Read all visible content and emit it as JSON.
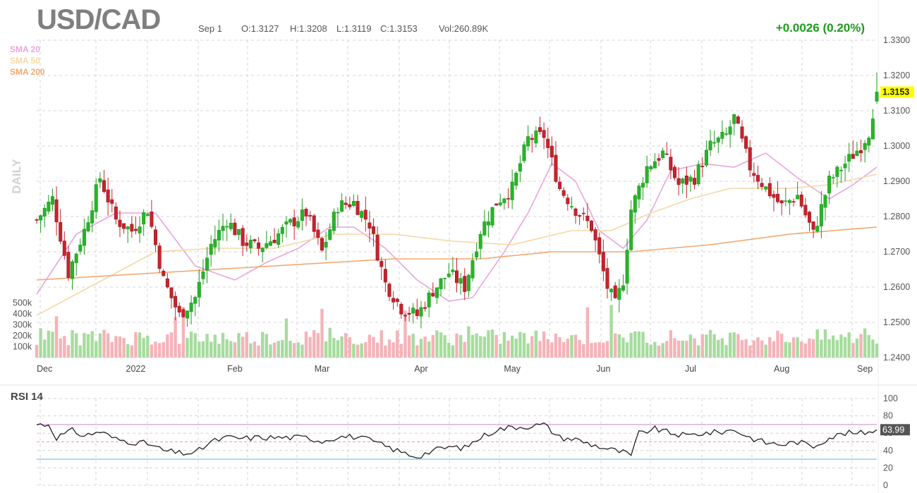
{
  "header": {
    "symbol": "USD/CAD",
    "date": "Sep 1",
    "open": "O:1.3127",
    "high": "H:1.3208",
    "low": "L:1.3119",
    "close": "C:1.3153",
    "volume": "Vol:260.89K",
    "change": "+0.0026 (0.20%)"
  },
  "legend": {
    "sma20": "SMA 20",
    "sma50": "SMA 50",
    "sma200": "SMA 200",
    "daily": "DAILY"
  },
  "colors": {
    "up": "#1e9c1e",
    "up_fill": "#27b427",
    "down": "#c8232c",
    "vol_up": "#a6dc9e",
    "vol_down": "#f5b3b8",
    "sma20": "#e9a6dc",
    "sma50": "#f4d9a5",
    "sma200": "#f2a86f",
    "price_highlight": "#ffff00",
    "rsi_line": "#222222",
    "rsi_upper": "#d9a6d9",
    "rsi_lower": "#8ec8e8"
  },
  "chart_data": [
    {
      "type": "candlestick",
      "title": "USD/CAD",
      "interval": "daily",
      "ylim": [
        1.24,
        1.33
      ],
      "y_ticks": [
        "1.3300",
        "1.3200",
        "1.3100",
        "1.3000",
        "1.2900",
        "1.2800",
        "1.2700",
        "1.2600",
        "1.2500",
        "1.2400"
      ],
      "x_ticks": [
        "Dec",
        "2022",
        "Feb",
        "Mar",
        "Apr",
        "May",
        "Jun",
        "Jul",
        "Aug",
        "Sep"
      ],
      "x_ticks_at_bar": [
        2,
        25,
        50,
        72,
        97,
        120,
        143,
        165,
        188,
        209
      ],
      "last_price": "1.3153",
      "grid": true,
      "keyframes": [
        [
          0,
          1.279
        ],
        [
          4,
          1.285
        ],
        [
          8,
          1.264
        ],
        [
          12,
          1.276
        ],
        [
          16,
          1.291
        ],
        [
          20,
          1.279
        ],
        [
          24,
          1.276
        ],
        [
          28,
          1.282
        ],
        [
          32,
          1.262
        ],
        [
          36,
          1.252
        ],
        [
          40,
          1.257
        ],
        [
          44,
          1.272
        ],
        [
          48,
          1.279
        ],
        [
          52,
          1.273
        ],
        [
          56,
          1.271
        ],
        [
          60,
          1.274
        ],
        [
          64,
          1.278
        ],
        [
          68,
          1.281
        ],
        [
          72,
          1.27
        ],
        [
          76,
          1.283
        ],
        [
          80,
          1.284
        ],
        [
          84,
          1.278
        ],
        [
          88,
          1.261
        ],
        [
          92,
          1.254
        ],
        [
          96,
          1.252
        ],
        [
          100,
          1.259
        ],
        [
          104,
          1.264
        ],
        [
          108,
          1.26
        ],
        [
          112,
          1.276
        ],
        [
          116,
          1.284
        ],
        [
          120,
          1.288
        ],
        [
          124,
          1.302
        ],
        [
          128,
          1.303
        ],
        [
          132,
          1.288
        ],
        [
          136,
          1.282
        ],
        [
          140,
          1.277
        ],
        [
          144,
          1.26
        ],
        [
          146,
          1.255
        ],
        [
          148,
          1.262
        ],
        [
          150,
          1.282
        ],
        [
          154,
          1.294
        ],
        [
          158,
          1.298
        ],
        [
          162,
          1.289
        ],
        [
          166,
          1.291
        ],
        [
          170,
          1.3
        ],
        [
          174,
          1.303
        ],
        [
          176,
          1.308
        ],
        [
          180,
          1.294
        ],
        [
          184,
          1.288
        ],
        [
          188,
          1.283
        ],
        [
          192,
          1.286
        ],
        [
          196,
          1.275
        ],
        [
          200,
          1.29
        ],
        [
          204,
          1.295
        ],
        [
          208,
          1.3
        ],
        [
          210,
          1.304
        ],
        [
          212,
          1.3153
        ]
      ],
      "volume_scale": [
        "500k",
        "400k",
        "300k",
        "200k",
        "100k"
      ],
      "volume_ylim": [
        0,
        600000
      ],
      "volume_level": 200000,
      "sma_series": [
        {
          "name": "SMA 20",
          "points": [
            [
              0,
              1.258
            ],
            [
              10,
              1.275
            ],
            [
              20,
              1.281
            ],
            [
              30,
              1.281
            ],
            [
              40,
              1.266
            ],
            [
              50,
              1.262
            ],
            [
              58,
              1.267
            ],
            [
              66,
              1.271
            ],
            [
              74,
              1.277
            ],
            [
              80,
              1.277
            ],
            [
              88,
              1.271
            ],
            [
              96,
              1.262
            ],
            [
              104,
              1.256
            ],
            [
              110,
              1.257
            ],
            [
              118,
              1.27
            ],
            [
              124,
              1.281
            ],
            [
              130,
              1.295
            ],
            [
              136,
              1.29
            ],
            [
              142,
              1.276
            ],
            [
              148,
              1.271
            ],
            [
              154,
              1.279
            ],
            [
              160,
              1.293
            ],
            [
              168,
              1.295
            ],
            [
              176,
              1.294
            ],
            [
              184,
              1.298
            ],
            [
              192,
              1.291
            ],
            [
              200,
              1.285
            ],
            [
              206,
              1.289
            ],
            [
              212,
              1.294
            ]
          ]
        },
        {
          "name": "SMA 50",
          "points": [
            [
              0,
              1.252
            ],
            [
              15,
              1.261
            ],
            [
              30,
              1.27
            ],
            [
              45,
              1.271
            ],
            [
              60,
              1.271
            ],
            [
              75,
              1.275
            ],
            [
              90,
              1.275
            ],
            [
              105,
              1.273
            ],
            [
              120,
              1.272
            ],
            [
              135,
              1.276
            ],
            [
              145,
              1.276
            ],
            [
              155,
              1.281
            ],
            [
              165,
              1.285
            ],
            [
              175,
              1.288
            ],
            [
              190,
              1.288
            ],
            [
              200,
              1.289
            ],
            [
              212,
              1.292
            ]
          ]
        },
        {
          "name": "SMA 200",
          "points": [
            [
              0,
              1.262
            ],
            [
              30,
              1.264
            ],
            [
              60,
              1.266
            ],
            [
              90,
              1.268
            ],
            [
              112,
              1.268
            ],
            [
              130,
              1.27
            ],
            [
              150,
              1.27
            ],
            [
              170,
              1.272
            ],
            [
              190,
              1.275
            ],
            [
              212,
              1.277
            ]
          ]
        }
      ]
    },
    {
      "type": "line",
      "title": "RSI 14",
      "ylim": [
        0,
        100
      ],
      "y_ticks": [
        "100",
        "80",
        "60",
        "40",
        "20",
        "0"
      ],
      "upper_band": 70,
      "mid_band": 50,
      "lower_band": 30,
      "last_value": "63.99",
      "keyframes": [
        [
          0,
          70
        ],
        [
          3,
          70
        ],
        [
          5,
          55
        ],
        [
          9,
          63
        ],
        [
          12,
          57
        ],
        [
          16,
          62
        ],
        [
          20,
          53
        ],
        [
          24,
          50
        ],
        [
          28,
          48
        ],
        [
          32,
          40
        ],
        [
          36,
          37
        ],
        [
          40,
          37
        ],
        [
          44,
          50
        ],
        [
          48,
          55
        ],
        [
          52,
          54
        ],
        [
          56,
          55
        ],
        [
          60,
          55
        ],
        [
          64,
          55
        ],
        [
          68,
          55
        ],
        [
          72,
          51
        ],
        [
          76,
          56
        ],
        [
          80,
          56
        ],
        [
          84,
          52
        ],
        [
          88,
          45
        ],
        [
          92,
          38
        ],
        [
          96,
          33
        ],
        [
          100,
          40
        ],
        [
          104,
          44
        ],
        [
          108,
          43
        ],
        [
          112,
          55
        ],
        [
          116,
          64
        ],
        [
          120,
          67
        ],
        [
          124,
          68
        ],
        [
          128,
          70
        ],
        [
          132,
          55
        ],
        [
          136,
          53
        ],
        [
          140,
          47
        ],
        [
          144,
          42
        ],
        [
          148,
          38
        ],
        [
          150,
          34
        ],
        [
          152,
          60
        ],
        [
          156,
          65
        ],
        [
          160,
          60
        ],
        [
          164,
          57
        ],
        [
          168,
          60
        ],
        [
          172,
          61
        ],
        [
          176,
          64
        ],
        [
          180,
          55
        ],
        [
          184,
          49
        ],
        [
          188,
          47
        ],
        [
          192,
          50
        ],
        [
          196,
          45
        ],
        [
          200,
          55
        ],
        [
          204,
          60
        ],
        [
          208,
          60
        ],
        [
          212,
          64
        ]
      ]
    }
  ]
}
